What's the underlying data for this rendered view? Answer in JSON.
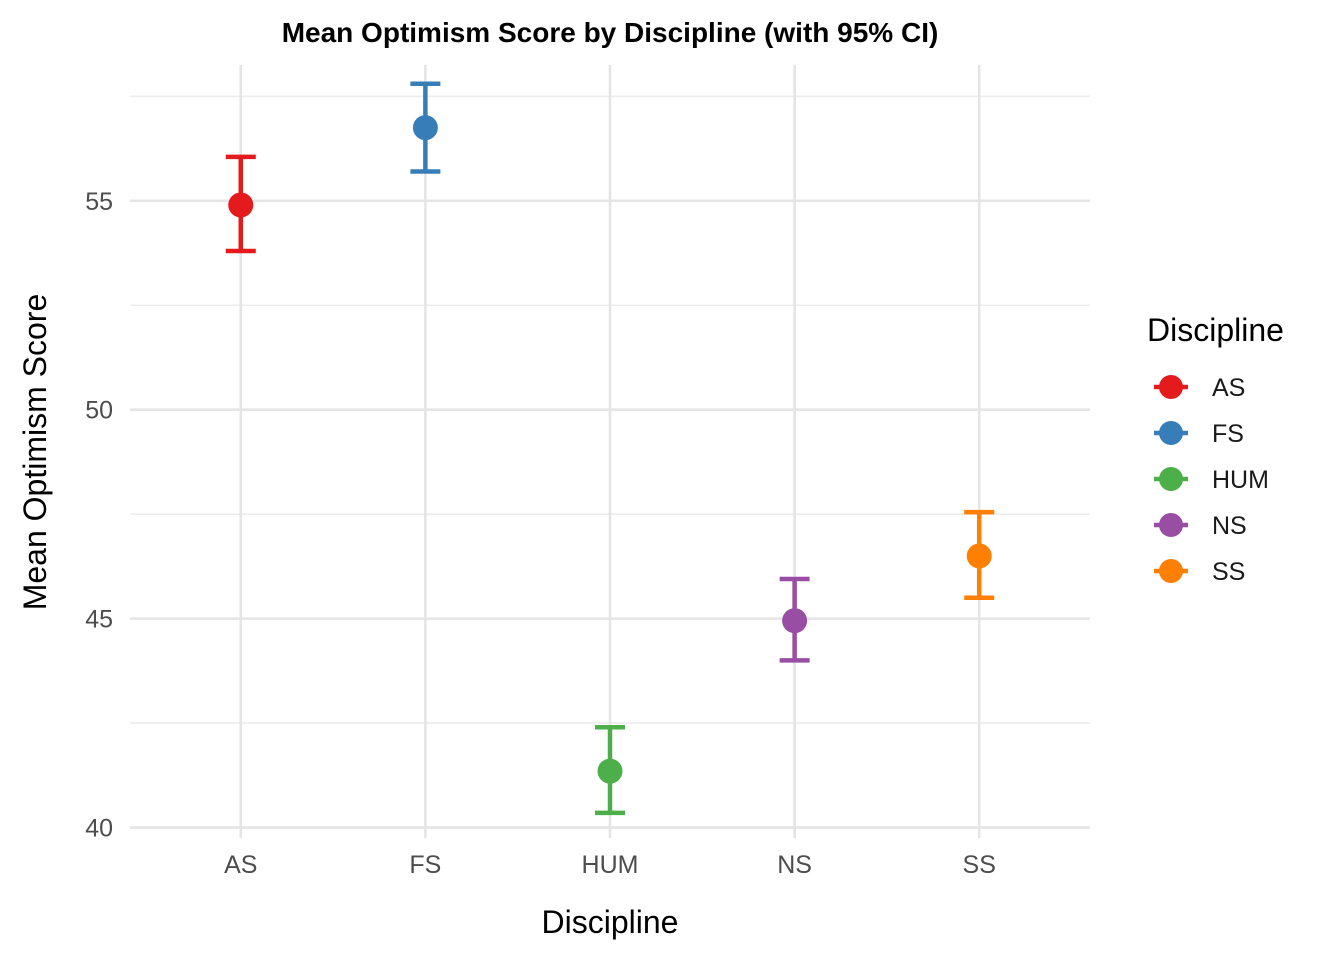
{
  "chart_data": {
    "type": "scatter",
    "title": "Mean Optimism Score by Discipline (with 95% CI)",
    "xlabel": "Discipline",
    "ylabel": "Mean Optimism Score",
    "categories": [
      "AS",
      "FS",
      "HUM",
      "NS",
      "SS"
    ],
    "series": [
      {
        "name": "AS",
        "mean": 54.9,
        "ci_lower": 53.8,
        "ci_upper": 56.05,
        "color": "#E41A1C"
      },
      {
        "name": "FS",
        "mean": 56.75,
        "ci_lower": 55.7,
        "ci_upper": 57.8,
        "color": "#377EB8"
      },
      {
        "name": "HUM",
        "mean": 41.35,
        "ci_lower": 40.35,
        "ci_upper": 42.4,
        "color": "#4DAF4A"
      },
      {
        "name": "NS",
        "mean": 44.95,
        "ci_lower": 44.0,
        "ci_upper": 45.95,
        "color": "#984EA3"
      },
      {
        "name": "SS",
        "mean": 46.5,
        "ci_lower": 45.5,
        "ci_upper": 47.55,
        "color": "#FF7F00"
      }
    ],
    "y_ticks": [
      40,
      45,
      50,
      55
    ],
    "ylim": [
      39.75,
      58.25
    ],
    "grid": true,
    "legend": {
      "title": "Discipline",
      "position": "right"
    }
  }
}
